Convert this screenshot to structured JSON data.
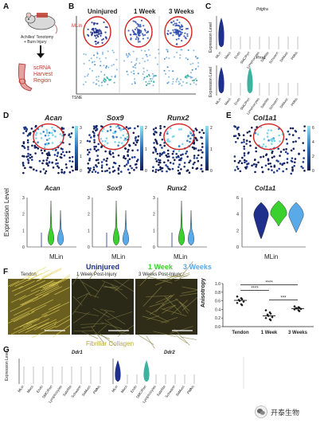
{
  "panel_A": {
    "letter": "A",
    "mouse_label_line1": "Achilles' Tenotomy",
    "mouse_label_line2": "+ Burn Injury",
    "harvest_line1": "scRNA",
    "harvest_line2": "Harvest",
    "harvest_line3": "Region"
  },
  "panel_B": {
    "letter": "B",
    "columns": [
      "Uninjured",
      "1 Week",
      "3 Weeks"
    ],
    "cluster_label": "MLin",
    "axis_label": "TSNE"
  },
  "panel_C": {
    "letter": "C",
    "ylabel": "Expression Level",
    "genes": [
      "Pdgfra",
      "Prrx1"
    ],
    "cell_types": [
      "MLin",
      "Macs",
      "Endo",
      "SMC/Peri",
      "Lymphocytes",
      "Satellite",
      "Schwann",
      "SkMusc",
      "PMNs"
    ]
  },
  "panel_D": {
    "letter": "D",
    "genes": [
      "Acan",
      "Sox9",
      "Runx2"
    ],
    "ylabel": "Expression Level",
    "scale_ticks": [
      [
        "3",
        "2",
        "1",
        "0"
      ],
      [
        "2",
        "1",
        "0"
      ],
      [
        "2",
        "1",
        "0"
      ]
    ],
    "violin_yticks": [
      "3",
      "2",
      "1",
      "0"
    ],
    "violin_xlabel": "MLin"
  },
  "panel_E": {
    "letter": "E",
    "gene": "Col1a1",
    "scale_ticks": [
      "6",
      "4",
      "2",
      "0"
    ],
    "violin_yticks": [
      "6",
      "4",
      "2",
      "0"
    ],
    "violin_xlabel": "MLin"
  },
  "legend_row": {
    "uninjured": "Uninjured",
    "week1": "1 Week",
    "week3": "3 Weeks",
    "colors": {
      "uninjured": "#1f2f8c",
      "week1": "#3ad12e",
      "week3": "#5aa9e8"
    }
  },
  "panel_F": {
    "letter": "F",
    "image_labels": [
      "Tendon",
      "1 Week Post-Injury",
      "3 Weeks Post-Injury"
    ],
    "caption": "Fibrillar Collagen",
    "chart": {
      "ylabel": "Anisotropy",
      "yticks": [
        "1.0",
        "0.8",
        "0.6",
        "0.4",
        "0.2",
        "0.0"
      ],
      "categories": [
        "Tendon",
        "1 Week",
        "3 Weeks"
      ],
      "sig_labels": [
        "****",
        "****",
        "***"
      ]
    }
  },
  "panel_G": {
    "letter": "G",
    "ylabel": "Expression Level",
    "genes": [
      "Ddr1",
      "Ddr2"
    ],
    "cell_types": [
      "MLin",
      "Macs",
      "Endo",
      "SMC/Peri",
      "Lymphocytes",
      "Satellite",
      "Schwann",
      "SkMusc",
      "PMNs"
    ]
  },
  "watermark": {
    "text": "开泰生物"
  },
  "chart_data": {
    "type": "scatter",
    "title": "",
    "xlabel": "",
    "ylabel": "Anisotropy",
    "ylim": [
      0.0,
      1.0
    ],
    "categories": [
      "Tendon",
      "1 Week",
      "3 Weeks"
    ],
    "series": [
      {
        "values": [
          0.7,
          0.66,
          0.64,
          0.62,
          0.6,
          0.58,
          0.55,
          0.52,
          0.5
        ]
      },
      {
        "values": [
          0.38,
          0.33,
          0.3,
          0.28,
          0.25,
          0.22,
          0.2,
          0.17,
          0.15
        ]
      },
      {
        "values": [
          0.47,
          0.45,
          0.44,
          0.43,
          0.42,
          0.41,
          0.4,
          0.38,
          0.36
        ]
      }
    ],
    "medians": [
      0.61,
      0.25,
      0.42
    ]
  }
}
